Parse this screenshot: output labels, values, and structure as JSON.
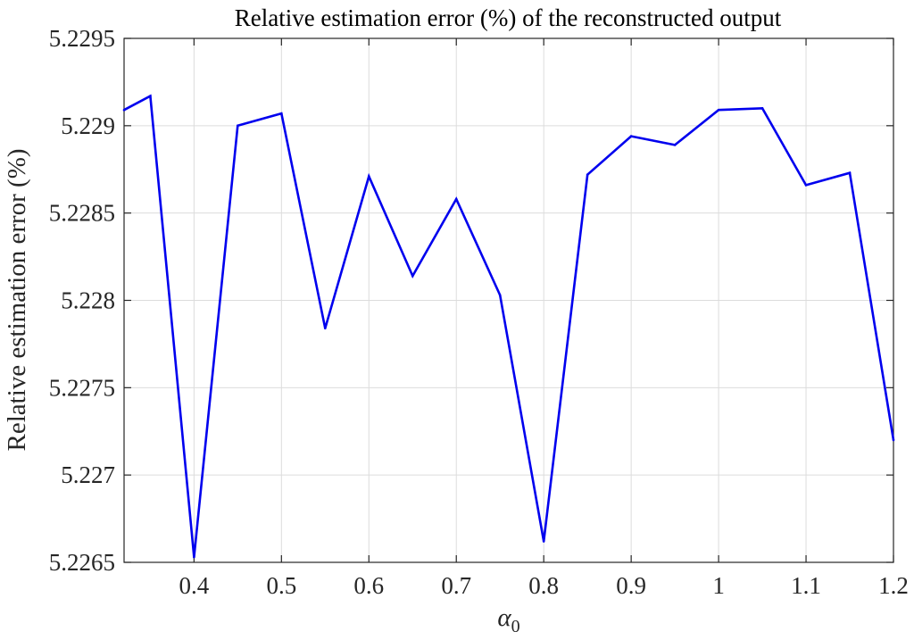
{
  "chart_data": {
    "type": "line",
    "title": "Relative estimation error (%) of the reconstructed output",
    "xlabel": "α0",
    "xlabel_base": "α",
    "xlabel_sub": "0",
    "ylabel": "Relative estimation error (%)",
    "xlim": [
      0.32,
      1.2
    ],
    "ylim": [
      5.2265,
      5.2295
    ],
    "x_ticks": [
      0.4,
      0.5,
      0.6,
      0.7,
      0.8,
      0.9,
      1.0,
      1.1,
      1.2
    ],
    "x_tick_labels": [
      "0.4",
      "0.5",
      "0.6",
      "0.7",
      "0.8",
      "0.9",
      "1",
      "1.1",
      "1.2"
    ],
    "y_ticks": [
      5.2265,
      5.227,
      5.2275,
      5.228,
      5.2285,
      5.229,
      5.2295
    ],
    "y_tick_labels": [
      "5.2265",
      "5.227",
      "5.2275",
      "5.228",
      "5.2285",
      "5.229",
      "5.2295"
    ],
    "grid": true,
    "series": [
      {
        "color": "#0000ee",
        "x": [
          0.32,
          0.35,
          0.4,
          0.45,
          0.5,
          0.55,
          0.6,
          0.65,
          0.7,
          0.75,
          0.8,
          0.85,
          0.9,
          0.95,
          1.0,
          1.05,
          1.1,
          1.15,
          1.2
        ],
        "y": [
          5.22909,
          5.22917,
          5.22653,
          5.229,
          5.22907,
          5.22784,
          5.22871,
          5.22814,
          5.22858,
          5.22803,
          5.22662,
          5.22872,
          5.22894,
          5.22889,
          5.22909,
          5.2291,
          5.22866,
          5.22873,
          5.2272
        ]
      }
    ]
  }
}
